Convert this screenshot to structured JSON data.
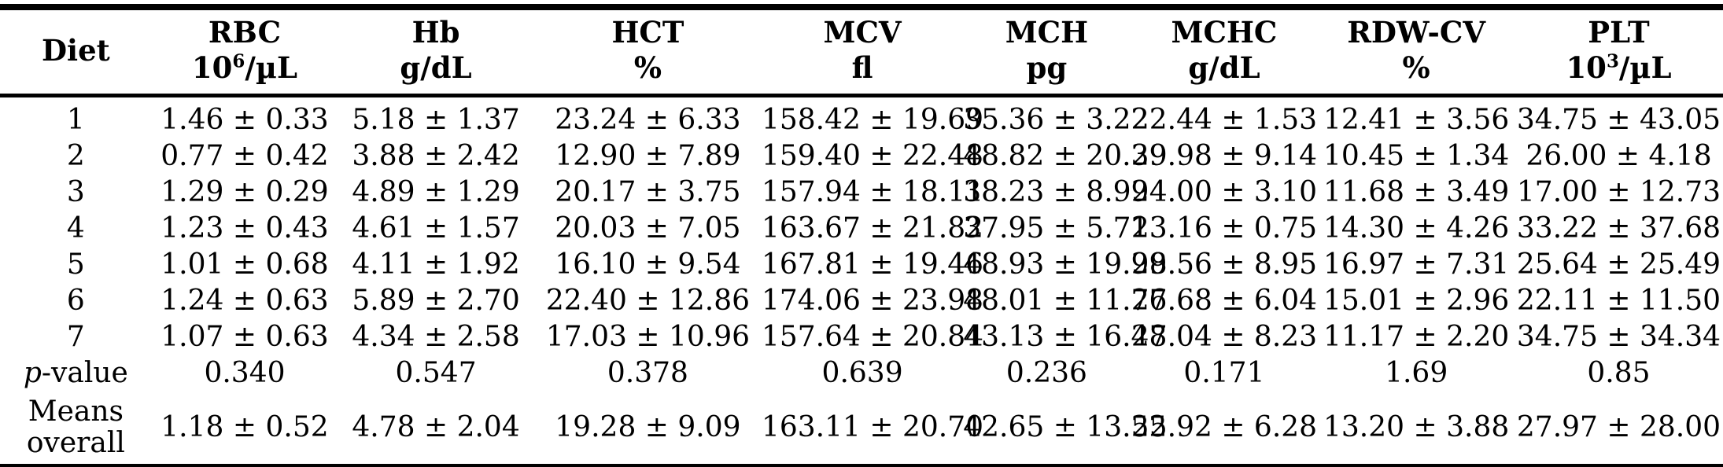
{
  "colors": {
    "text": "#000000",
    "background": "#ffffff",
    "rule": "#000000"
  },
  "table": {
    "columns": [
      {
        "label": "Diet"
      },
      {
        "label": "RBC",
        "unit_base": "10",
        "unit_sup": "6",
        "unit_rest": "/µL"
      },
      {
        "label": "Hb",
        "unit": "g/dL"
      },
      {
        "label": "HCT",
        "unit": "%"
      },
      {
        "label": "MCV",
        "unit": "fl"
      },
      {
        "label": "MCH",
        "unit": "pg"
      },
      {
        "label": "MCHC",
        "unit": "g/dL"
      },
      {
        "label": "RDW-CV",
        "unit": "%"
      },
      {
        "label": "PLT",
        "unit_base": "10",
        "unit_sup": "3",
        "unit_rest": "/µL"
      }
    ],
    "rows": [
      {
        "label": "1",
        "values": [
          "1.46 ± 0.33",
          "5.18 ± 1.37",
          "23.24 ± 6.33",
          "158.42 ± 19.69",
          "35.36 ± 3.22",
          "22.44 ± 1.53",
          "12.41 ± 3.56",
          "34.75 ± 43.05"
        ]
      },
      {
        "label": "2",
        "values": [
          "0.77 ± 0.42",
          "3.88 ± 2.42",
          "12.90 ± 7.89",
          "159.40 ± 22.48",
          "48.82 ± 20.39",
          "29.98 ± 9.14",
          "10.45 ± 1.34",
          "26.00 ± 4.18"
        ]
      },
      {
        "label": "3",
        "values": [
          "1.29 ± 0.29",
          "4.89 ± 1.29",
          "20.17 ± 3.75",
          "157.94 ± 18.11",
          "38.23 ± 8.99",
          "24.00 ± 3.10",
          "11.68 ± 3.49",
          "17.00 ± 12.73"
        ]
      },
      {
        "label": "4",
        "values": [
          "1.23 ± 0.43",
          "4.61 ± 1.57",
          "20.03 ± 7.05",
          "163.67 ± 21.82",
          "37.95 ± 5.71",
          "23.16 ± 0.75",
          "14.30 ± 4.26",
          "33.22 ± 37.68"
        ]
      },
      {
        "label": "5",
        "values": [
          "1.01 ± 0.68",
          "4.11 ± 1.92",
          "16.10 ± 9.54",
          "167.81 ± 19.46",
          "48.93 ± 19.99",
          "28.56 ± 8.95",
          "16.97 ± 7.31",
          "25.64 ± 25.49"
        ]
      },
      {
        "label": "6",
        "values": [
          "1.24 ± 0.63",
          "5.89 ± 2.70",
          "22.40 ± 12.86",
          "174.06 ± 23.98",
          "48.01 ± 11.76",
          "27.68 ± 6.04",
          "15.01 ± 2.96",
          "22.11 ± 11.50"
        ]
      },
      {
        "label": "7",
        "values": [
          "1.07 ± 0.63",
          "4.34 ± 2.58",
          "17.03 ± 10.96",
          "157.64 ± 20.84",
          "43.13 ± 16.48",
          "27.04 ± 8.23",
          "11.17 ± 2.20",
          "34.75 ± 34.34"
        ]
      },
      {
        "label": "p-value",
        "italic_first": true,
        "values": [
          "0.340",
          "0.547",
          "0.378",
          "0.639",
          "0.236",
          "0.171",
          "1.69",
          "0.85"
        ]
      },
      {
        "label": "Means overall",
        "tall": true,
        "values": [
          "1.18 ± 0.52",
          "4.78 ± 2.04",
          "19.28 ± 9.09",
          "163.11 ± 20.70",
          "42.65 ± 13.52",
          "25.92 ± 6.28",
          "13.20 ± 3.88",
          "27.97 ± 28.00"
        ]
      }
    ]
  }
}
